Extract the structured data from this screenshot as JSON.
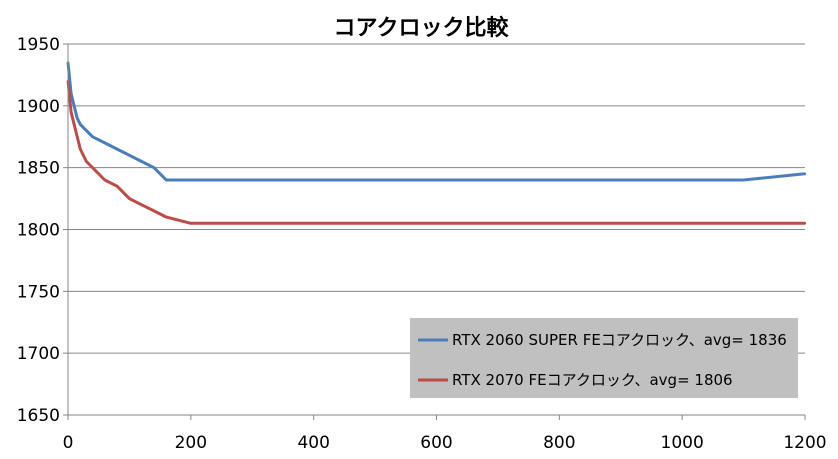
{
  "chart_data": {
    "type": "line",
    "title": "コアクロック比較",
    "xlabel": "",
    "ylabel": "",
    "xlim": [
      0,
      1200
    ],
    "ylim": [
      1650,
      1950
    ],
    "x_ticks": [
      0,
      200,
      400,
      600,
      800,
      1000,
      1200
    ],
    "y_ticks": [
      1650,
      1700,
      1750,
      1800,
      1850,
      1900,
      1950
    ],
    "grid": "horizontal",
    "legend_position": "bottom-right",
    "legend_background": "#c0c0c0",
    "series": [
      {
        "name": "RTX 2060 SUPER FEコアクロック、avg= 1836",
        "color": "#4a7ebb",
        "x": [
          0,
          5,
          10,
          15,
          20,
          30,
          40,
          60,
          80,
          100,
          120,
          140,
          160,
          200,
          300,
          400,
          500,
          600,
          700,
          800,
          900,
          1000,
          1100,
          1200
        ],
        "y": [
          1935,
          1910,
          1900,
          1890,
          1885,
          1880,
          1875,
          1870,
          1865,
          1860,
          1855,
          1850,
          1840,
          1840,
          1840,
          1840,
          1840,
          1840,
          1840,
          1840,
          1840,
          1840,
          1840,
          1845
        ]
      },
      {
        "name": "RTX 2070 FEコアクロック、avg= 1806",
        "color": "#be4b48",
        "x": [
          0,
          5,
          10,
          15,
          20,
          30,
          40,
          60,
          80,
          100,
          120,
          140,
          160,
          200,
          300,
          400,
          500,
          600,
          700,
          800,
          900,
          1000,
          1100,
          1200
        ],
        "y": [
          1920,
          1895,
          1885,
          1875,
          1865,
          1855,
          1850,
          1840,
          1835,
          1825,
          1820,
          1815,
          1810,
          1805,
          1805,
          1805,
          1805,
          1805,
          1805,
          1805,
          1805,
          1805,
          1805,
          1805
        ]
      }
    ]
  }
}
